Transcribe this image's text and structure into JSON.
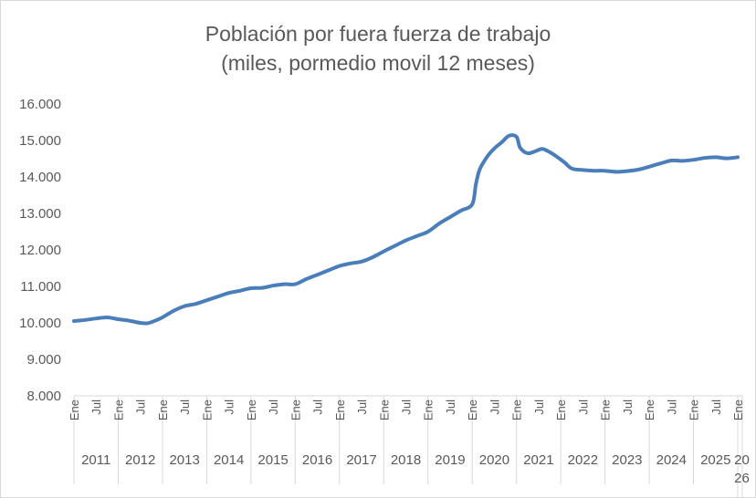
{
  "chart_data": {
    "type": "line",
    "title_line1": "Población por fuera fuerza de trabajo",
    "title_line2": "(miles, pormedio movil 12 meses)",
    "xlabel": "",
    "ylabel": "",
    "ylim": [
      8000,
      16000
    ],
    "y_ticks": [
      "8.000",
      "9.000",
      "10.000",
      "11.000",
      "12.000",
      "13.000",
      "14.000",
      "15.000",
      "16.000"
    ],
    "month_labels": [
      "Ene",
      "Jul"
    ],
    "years": [
      "2011",
      "2012",
      "2013",
      "2014",
      "2015",
      "2016",
      "2017",
      "2018",
      "2019",
      "2020",
      "2021",
      "2022",
      "2023",
      "2024",
      "2025"
    ],
    "last_year": {
      "label": "2026",
      "line1": "20",
      "line2": "26",
      "month": "Ene"
    },
    "grid": false,
    "legend": "none",
    "series": [
      {
        "color": "#4a7ebb",
        "x": [
          "2011-01",
          "2011-04",
          "2011-07",
          "2011-10",
          "2012-01",
          "2012-04",
          "2012-07",
          "2012-09",
          "2012-11",
          "2013-01",
          "2013-04",
          "2013-07",
          "2013-10",
          "2014-01",
          "2014-04",
          "2014-07",
          "2014-10",
          "2015-01",
          "2015-04",
          "2015-07",
          "2015-10",
          "2016-01",
          "2016-04",
          "2016-07",
          "2016-10",
          "2017-01",
          "2017-04",
          "2017-07",
          "2017-10",
          "2018-01",
          "2018-04",
          "2018-07",
          "2018-10",
          "2019-01",
          "2019-04",
          "2019-07",
          "2019-10",
          "2020-01",
          "2020-02",
          "2020-03",
          "2020-05",
          "2020-07",
          "2020-09",
          "2020-11",
          "2021-01",
          "2021-02",
          "2021-04",
          "2021-06",
          "2021-08",
          "2021-10",
          "2021-12",
          "2022-02",
          "2022-04",
          "2022-07",
          "2022-10",
          "2023-01",
          "2023-04",
          "2023-07",
          "2023-10",
          "2024-01",
          "2024-04",
          "2024-07",
          "2024-10",
          "2025-01",
          "2025-04",
          "2025-07",
          "2025-10",
          "2026-01"
        ],
        "values": [
          10050,
          10080,
          10120,
          10150,
          10100,
          10060,
          10000,
          9990,
          10060,
          10150,
          10330,
          10460,
          10520,
          10620,
          10720,
          10820,
          10880,
          10950,
          10960,
          11020,
          11060,
          11060,
          11200,
          11320,
          11440,
          11560,
          11630,
          11680,
          11800,
          11960,
          12110,
          12260,
          12380,
          12500,
          12720,
          12900,
          13080,
          13250,
          13800,
          14200,
          14550,
          14780,
          14950,
          15130,
          15100,
          14800,
          14650,
          14700,
          14770,
          14680,
          14550,
          14400,
          14230,
          14190,
          14170,
          14170,
          14140,
          14160,
          14200,
          14280,
          14370,
          14450,
          14440,
          14470,
          14520,
          14540,
          14510,
          14540
        ]
      }
    ]
  }
}
